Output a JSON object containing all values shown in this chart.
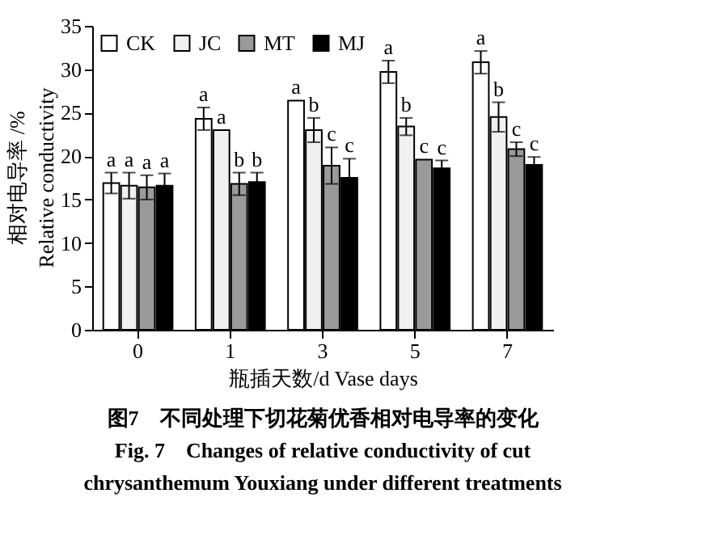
{
  "chart_data": {
    "type": "bar",
    "categories": [
      "0",
      "1",
      "3",
      "5",
      "7"
    ],
    "xlabel": "瓶插天数/d  Vase days",
    "ylabel": "相对电导率 /%\nRelative conductivity",
    "ylim": [
      0,
      35
    ],
    "yticks": [
      0,
      5,
      10,
      15,
      20,
      25,
      30,
      35
    ],
    "grid": false,
    "legend": "top left",
    "series": [
      {
        "name": "CK",
        "color": "#ffffff",
        "values": [
          16.9,
          24.3,
          26.4,
          29.7,
          30.8
        ],
        "errors": [
          1.2,
          1.3,
          null,
          1.3,
          1.3
        ],
        "value_labels": [
          "a",
          "a",
          "a",
          "a",
          "a"
        ]
      },
      {
        "name": "JC",
        "color": "#f0f0f0",
        "values": [
          16.6,
          23.0,
          23.0,
          23.4,
          24.5
        ],
        "errors": [
          1.5,
          null,
          1.4,
          1.0,
          1.7
        ],
        "value_labels": [
          "a",
          "a",
          "b",
          "b",
          "b"
        ]
      },
      {
        "name": "MT",
        "color": "#9a9a9a",
        "values": [
          16.4,
          16.8,
          18.9,
          19.6,
          20.8
        ],
        "errors": [
          1.4,
          1.3,
          2.1,
          null,
          0.8
        ],
        "value_labels": [
          "a",
          "b",
          "c",
          "c",
          "c"
        ]
      },
      {
        "name": "MJ",
        "color": "#000000",
        "values": [
          16.6,
          17.0,
          17.5,
          18.6,
          19.0
        ],
        "errors": [
          1.4,
          1.1,
          2.2,
          0.9,
          0.9
        ],
        "value_labels": [
          "a",
          "b",
          "c",
          "c",
          "c"
        ]
      }
    ],
    "annotations": [
      "图7　不同处理下切花菊优香相对电导率的变化",
      "Fig. 7　Changes of relative conductivity of cut chrysanthemum Youxiang under different treatments"
    ]
  }
}
